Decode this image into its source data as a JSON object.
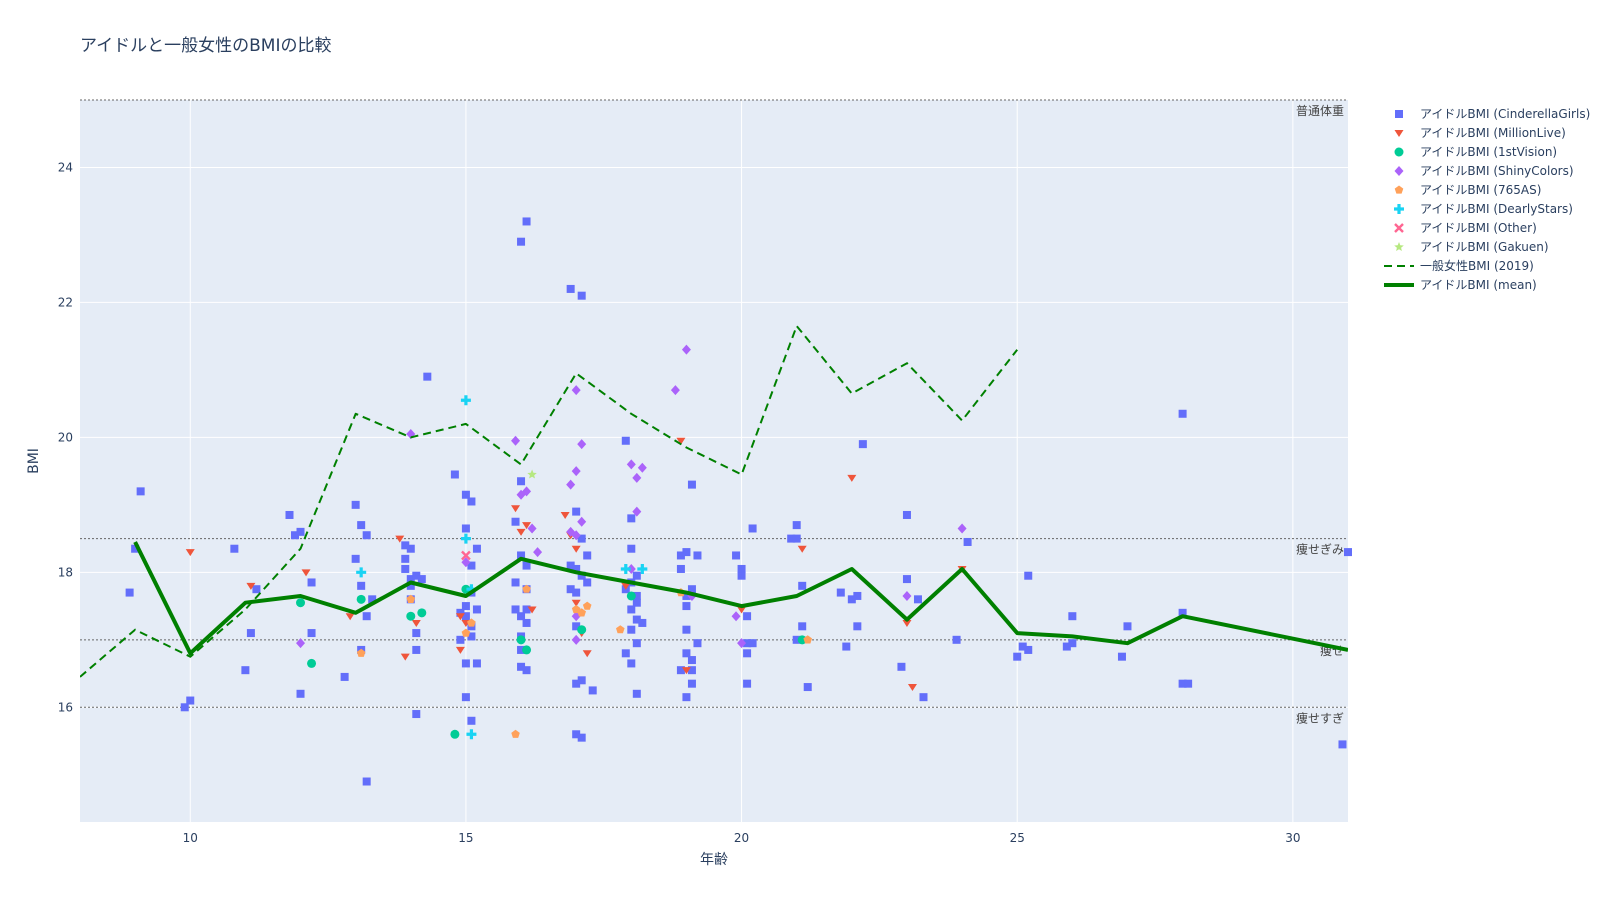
{
  "chart_data": {
    "type": "scatter",
    "title": "アイドルと一般女性のBMIの比較",
    "xlabel": "年齢",
    "ylabel": "BMI",
    "xlim": [
      8,
      31
    ],
    "ylim": [
      14.3,
      25
    ],
    "xticks": [
      10,
      15,
      20,
      25,
      30
    ],
    "yticks": [
      16,
      18,
      20,
      22,
      24
    ],
    "grid": true,
    "legend_position": "right",
    "reference_lines": [
      {
        "y": 25,
        "label": "普通体重"
      },
      {
        "y": 18.5,
        "label": "痩せぎみ"
      },
      {
        "y": 17,
        "label": "痩せ"
      },
      {
        "y": 16,
        "label": "痩せすぎ"
      }
    ],
    "series": [
      {
        "name": "アイドルBMI (CinderellaGirls)",
        "marker": "square",
        "color": "#636efa",
        "points": [
          [
            8.9,
            17.7
          ],
          [
            9,
            18.35
          ],
          [
            9.1,
            19.2
          ],
          [
            9.9,
            16
          ],
          [
            10,
            16.1
          ],
          [
            10.8,
            18.35
          ],
          [
            11,
            16.55
          ],
          [
            11.1,
            17.1
          ],
          [
            11.2,
            17.75
          ],
          [
            11.8,
            18.85
          ],
          [
            11.9,
            18.55
          ],
          [
            12,
            18.6
          ],
          [
            12,
            16.2
          ],
          [
            12.2,
            17.1
          ],
          [
            12.2,
            17.85
          ],
          [
            12.8,
            16.45
          ],
          [
            13,
            19
          ],
          [
            13,
            18.2
          ],
          [
            13.1,
            18.7
          ],
          [
            13.1,
            17.8
          ],
          [
            13.1,
            16.85
          ],
          [
            13.2,
            18.55
          ],
          [
            13.2,
            17.35
          ],
          [
            13.3,
            17.6
          ],
          [
            13.2,
            14.9
          ],
          [
            13.9,
            18.4
          ],
          [
            13.9,
            18.2
          ],
          [
            13.9,
            18.05
          ],
          [
            14,
            17.6
          ],
          [
            14,
            17.8
          ],
          [
            14,
            17.9
          ],
          [
            14,
            18.35
          ],
          [
            14.1,
            17.95
          ],
          [
            14.1,
            17.1
          ],
          [
            14.1,
            16.85
          ],
          [
            14.1,
            15.9
          ],
          [
            14.2,
            17.9
          ],
          [
            14.3,
            20.9
          ],
          [
            14.8,
            19.45
          ],
          [
            14.9,
            17
          ],
          [
            14.9,
            17.4
          ],
          [
            15,
            18.65
          ],
          [
            15,
            19.15
          ],
          [
            15,
            17.5
          ],
          [
            15,
            17.35
          ],
          [
            15,
            16.65
          ],
          [
            15,
            16.15
          ],
          [
            15.1,
            19.05
          ],
          [
            15.1,
            18.1
          ],
          [
            15.1,
            17.7
          ],
          [
            15.1,
            17.2
          ],
          [
            15.1,
            17.05
          ],
          [
            15.1,
            15.8
          ],
          [
            15.2,
            18.35
          ],
          [
            15.2,
            17.45
          ],
          [
            15.2,
            16.65
          ],
          [
            15.9,
            18.75
          ],
          [
            15.9,
            17.85
          ],
          [
            15.9,
            17.45
          ],
          [
            16,
            19.35
          ],
          [
            16,
            18.25
          ],
          [
            16,
            17.35
          ],
          [
            16,
            17.05
          ],
          [
            16,
            16.85
          ],
          [
            16,
            16.6
          ],
          [
            16,
            22.9
          ],
          [
            16.1,
            23.2
          ],
          [
            16.1,
            18.1
          ],
          [
            16.1,
            17.75
          ],
          [
            16.1,
            17.45
          ],
          [
            16.1,
            17.25
          ],
          [
            16.1,
            16.55
          ],
          [
            16.9,
            22.2
          ],
          [
            16.9,
            18.1
          ],
          [
            16.9,
            17.75
          ],
          [
            17,
            18.9
          ],
          [
            17,
            18.05
          ],
          [
            17,
            17.7
          ],
          [
            17,
            17.2
          ],
          [
            17,
            16.35
          ],
          [
            17,
            15.6
          ],
          [
            17.1,
            22.1
          ],
          [
            17.1,
            18.5
          ],
          [
            17.1,
            17.95
          ],
          [
            17.1,
            16.4
          ],
          [
            17.1,
            15.55
          ],
          [
            17.2,
            18.25
          ],
          [
            17.2,
            17.85
          ],
          [
            17.3,
            16.25
          ],
          [
            17.9,
            19.95
          ],
          [
            17.9,
            17.75
          ],
          [
            17.9,
            16.8
          ],
          [
            18,
            18.35
          ],
          [
            18,
            17.85
          ],
          [
            18,
            17.45
          ],
          [
            18,
            17.15
          ],
          [
            18,
            16.65
          ],
          [
            18,
            18.8
          ],
          [
            18.1,
            17.65
          ],
          [
            18.1,
            17.55
          ],
          [
            18.1,
            17.3
          ],
          [
            18.1,
            16.95
          ],
          [
            18.1,
            16.2
          ],
          [
            18.1,
            17.95
          ],
          [
            18.2,
            17.25
          ],
          [
            18.9,
            18.25
          ],
          [
            18.9,
            18.05
          ],
          [
            18.9,
            16.55
          ],
          [
            19,
            18.3
          ],
          [
            19,
            17.65
          ],
          [
            19,
            17.5
          ],
          [
            19,
            17.15
          ],
          [
            19,
            16.8
          ],
          [
            19,
            16.15
          ],
          [
            19.1,
            19.3
          ],
          [
            19.1,
            17.75
          ],
          [
            19.1,
            16.7
          ],
          [
            19.1,
            16.55
          ],
          [
            19.1,
            16.35
          ],
          [
            19.2,
            18.25
          ],
          [
            19.2,
            16.95
          ],
          [
            19.9,
            18.25
          ],
          [
            20,
            18.05
          ],
          [
            20,
            17.95
          ],
          [
            20.1,
            16.95
          ],
          [
            20.1,
            17.35
          ],
          [
            20.1,
            16.8
          ],
          [
            20.1,
            16.35
          ],
          [
            20.2,
            18.65
          ],
          [
            20.2,
            16.95
          ],
          [
            20.9,
            18.5
          ],
          [
            21,
            18.5
          ],
          [
            21,
            18.7
          ],
          [
            21,
            17
          ],
          [
            21.1,
            17.2
          ],
          [
            21.1,
            17.8
          ],
          [
            21.2,
            16.3
          ],
          [
            21.8,
            17.7
          ],
          [
            21.9,
            16.9
          ],
          [
            22,
            17.6
          ],
          [
            22.1,
            17.65
          ],
          [
            22.1,
            17.2
          ],
          [
            22.2,
            19.9
          ],
          [
            22.9,
            16.6
          ],
          [
            23,
            17.9
          ],
          [
            23,
            18.85
          ],
          [
            23.2,
            17.6
          ],
          [
            23.3,
            16.15
          ],
          [
            23.9,
            17
          ],
          [
            24.1,
            18.45
          ],
          [
            25,
            16.75
          ],
          [
            25.1,
            16.9
          ],
          [
            25.2,
            16.85
          ],
          [
            25.2,
            17.95
          ],
          [
            25.9,
            16.9
          ],
          [
            26,
            17.35
          ],
          [
            26,
            16.95
          ],
          [
            26.9,
            16.75
          ],
          [
            27,
            17.2
          ],
          [
            28,
            20.35
          ],
          [
            28,
            17.4
          ],
          [
            28,
            16.35
          ],
          [
            28.1,
            16.35
          ],
          [
            30.9,
            15.45
          ],
          [
            31,
            18.3
          ]
        ]
      },
      {
        "name": "アイドルBMI (MillionLive)",
        "marker": "triangle-down",
        "color": "#ef553b",
        "points": [
          [
            10,
            18.3
          ],
          [
            11.1,
            17.8
          ],
          [
            12.1,
            18
          ],
          [
            12.9,
            17.35
          ],
          [
            13.8,
            18.5
          ],
          [
            13.9,
            16.75
          ],
          [
            14.1,
            17.25
          ],
          [
            14.9,
            17.35
          ],
          [
            14.9,
            16.85
          ],
          [
            15,
            17.25
          ],
          [
            15.9,
            18.95
          ],
          [
            16,
            18.6
          ],
          [
            16.1,
            18.7
          ],
          [
            16.2,
            17.45
          ],
          [
            16.8,
            18.85
          ],
          [
            16.9,
            18.55
          ],
          [
            17,
            18.35
          ],
          [
            17,
            17.55
          ],
          [
            17.1,
            17.1
          ],
          [
            17.2,
            16.8
          ],
          [
            17.9,
            17.8
          ],
          [
            18.9,
            19.95
          ],
          [
            19,
            16.55
          ],
          [
            20,
            17.45
          ],
          [
            21.1,
            18.35
          ],
          [
            22,
            19.4
          ],
          [
            23,
            17.25
          ],
          [
            23.1,
            16.3
          ],
          [
            24,
            18.05
          ]
        ]
      },
      {
        "name": "アイドルBMI (1stVision)",
        "marker": "circle",
        "color": "#00cc96",
        "points": [
          [
            12,
            17.55
          ],
          [
            12.2,
            16.65
          ],
          [
            13.1,
            17.6
          ],
          [
            14,
            17.35
          ],
          [
            14.2,
            17.4
          ],
          [
            14.8,
            15.6
          ],
          [
            15,
            17.75
          ],
          [
            16,
            17
          ],
          [
            16.1,
            16.85
          ],
          [
            17.1,
            17.15
          ],
          [
            18,
            17.65
          ],
          [
            21.1,
            17
          ]
        ]
      },
      {
        "name": "アイドルBMI (ShinyColors)",
        "marker": "diamond",
        "color": "#ab63fa",
        "points": [
          [
            12,
            16.95
          ],
          [
            14,
            20.05
          ],
          [
            15,
            18.15
          ],
          [
            15.9,
            19.95
          ],
          [
            16,
            19.15
          ],
          [
            16.1,
            19.2
          ],
          [
            16.2,
            18.65
          ],
          [
            16.3,
            18.3
          ],
          [
            16.9,
            19.3
          ],
          [
            16.9,
            18.6
          ],
          [
            17,
            19.5
          ],
          [
            17,
            18.55
          ],
          [
            17,
            20.7
          ],
          [
            17.1,
            18.75
          ],
          [
            17.1,
            19.9
          ],
          [
            17,
            17
          ],
          [
            17,
            17.35
          ],
          [
            18,
            18.05
          ],
          [
            18,
            19.6
          ],
          [
            18.1,
            19.4
          ],
          [
            18.2,
            19.55
          ],
          [
            18.1,
            18.9
          ],
          [
            18.8,
            20.7
          ],
          [
            19,
            21.3
          ],
          [
            19.1,
            17.65
          ],
          [
            19.9,
            17.35
          ],
          [
            20,
            16.95
          ],
          [
            23,
            17.65
          ],
          [
            24,
            18.65
          ]
        ]
      },
      {
        "name": "アイドルBMI (765AS)",
        "marker": "pentagon",
        "color": "#ffa15a",
        "points": [
          [
            13.1,
            16.8
          ],
          [
            14,
            17.6
          ],
          [
            15,
            17.1
          ],
          [
            15.1,
            17.25
          ],
          [
            15.9,
            15.6
          ],
          [
            16.1,
            17.75
          ],
          [
            17,
            17.45
          ],
          [
            17.1,
            17.4
          ],
          [
            17.2,
            17.5
          ],
          [
            17.8,
            17.15
          ],
          [
            18.9,
            17.7
          ],
          [
            21.2,
            17
          ]
        ]
      },
      {
        "name": "アイドルBMI (DearlyStars)",
        "marker": "cross",
        "color": "#19d3f3",
        "points": [
          [
            13.1,
            18
          ],
          [
            15,
            18.5
          ],
          [
            15,
            20.55
          ],
          [
            15.1,
            15.6
          ],
          [
            15.1,
            17.75
          ],
          [
            17.9,
            18.05
          ],
          [
            18.2,
            18.05
          ]
        ]
      },
      {
        "name": "アイドルBMI (Other)",
        "marker": "x",
        "color": "#ff6692",
        "points": [
          [
            15,
            18.25
          ]
        ]
      },
      {
        "name": "アイドルBMI (Gakuen)",
        "marker": "star",
        "color": "#b6e880",
        "points": [
          [
            16.2,
            19.45
          ]
        ]
      },
      {
        "name": "一般女性BMI (2019)",
        "line": "dash",
        "color": "#008000",
        "points": [
          [
            8,
            16.45
          ],
          [
            9,
            17.15
          ],
          [
            10,
            16.75
          ],
          [
            11,
            17.45
          ],
          [
            12,
            18.35
          ],
          [
            13,
            20.35
          ],
          [
            14,
            20
          ],
          [
            15,
            20.2
          ],
          [
            16,
            19.6
          ],
          [
            17,
            20.95
          ],
          [
            18,
            20.35
          ],
          [
            19,
            19.85
          ],
          [
            20,
            19.45
          ],
          [
            21,
            21.65
          ],
          [
            22,
            20.65
          ],
          [
            23,
            21.1
          ],
          [
            24,
            20.25
          ],
          [
            25,
            21.3
          ]
        ]
      },
      {
        "name": "アイドルBMI (mean)",
        "line": "solid",
        "color": "#008000",
        "points": [
          [
            9,
            18.45
          ],
          [
            10,
            16.8
          ],
          [
            11,
            17.55
          ],
          [
            12,
            17.65
          ],
          [
            13,
            17.4
          ],
          [
            14,
            17.85
          ],
          [
            15,
            17.65
          ],
          [
            16,
            18.2
          ],
          [
            17,
            18
          ],
          [
            18,
            17.85
          ],
          [
            19,
            17.7
          ],
          [
            20,
            17.5
          ],
          [
            21,
            17.65
          ],
          [
            22,
            18.05
          ],
          [
            23,
            17.3
          ],
          [
            24,
            18.05
          ],
          [
            25,
            17.1
          ],
          [
            26,
            17.05
          ],
          [
            27,
            16.95
          ],
          [
            28,
            17.35
          ],
          [
            31,
            16.85
          ]
        ]
      }
    ]
  }
}
